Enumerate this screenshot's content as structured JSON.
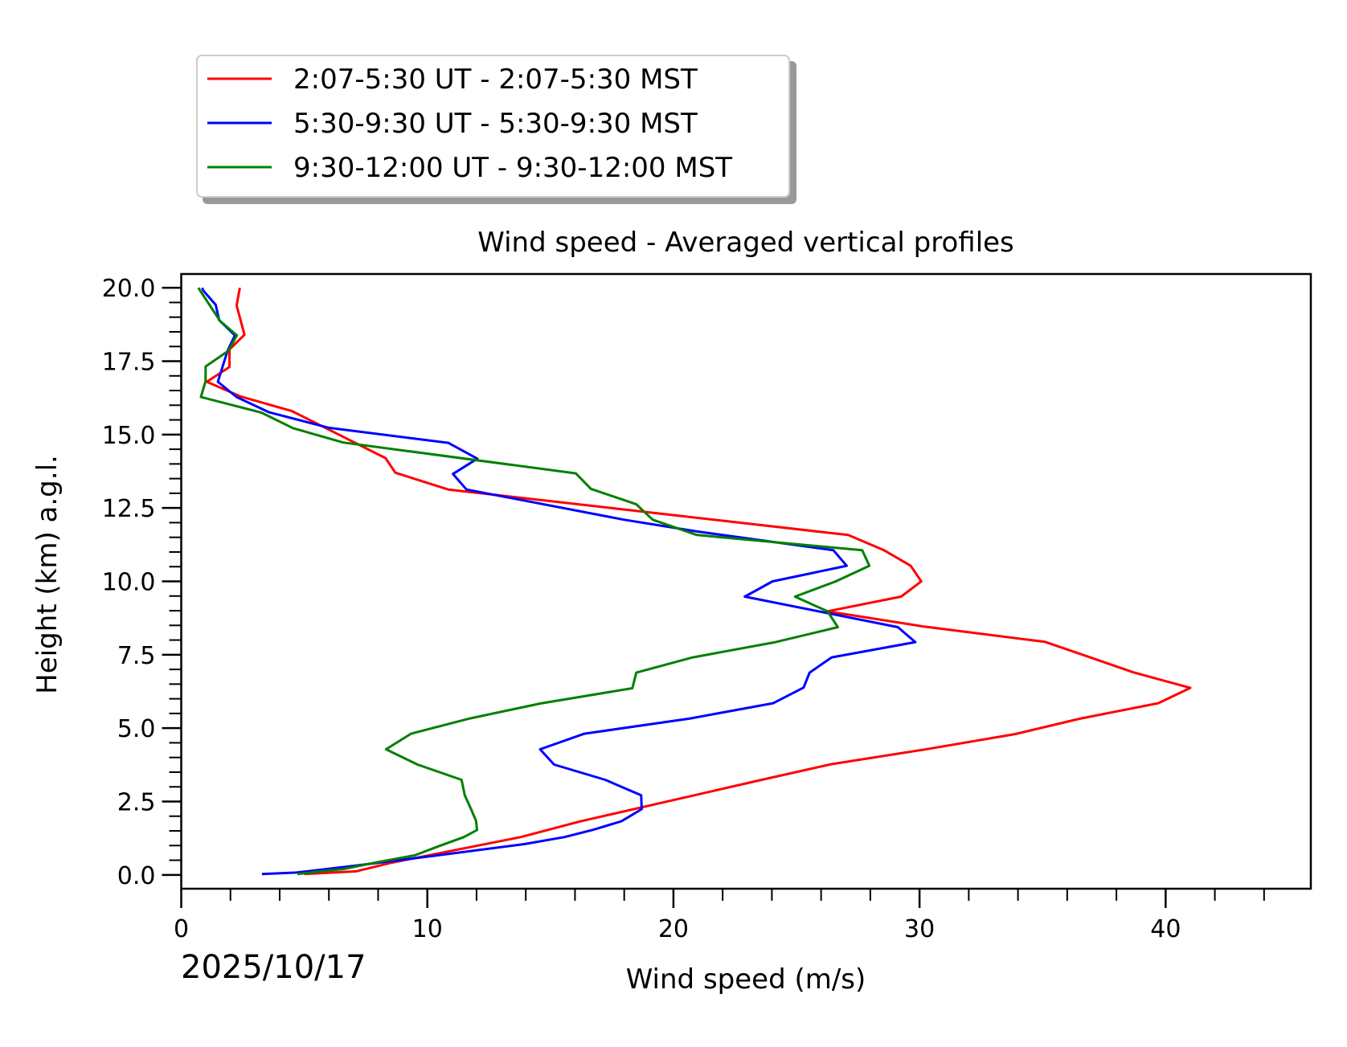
{
  "chart_data": {
    "type": "line",
    "title": "Wind speed - Averaged vertical profiles",
    "xlabel": "Wind speed (m/s)",
    "ylabel": "Height (km) a.g.l.",
    "date_label": "2025/10/17",
    "xlim": [
      0,
      45.9
    ],
    "ylim": [
      -0.47,
      20.47
    ],
    "x_ticks": [
      0,
      10,
      20,
      30,
      40
    ],
    "x_tick_labels": [
      "0",
      "10",
      "20",
      "30",
      "40"
    ],
    "x_minor_step": 2,
    "y_ticks": [
      0,
      2.5,
      5,
      7.5,
      10,
      12.5,
      15,
      17.5,
      20
    ],
    "y_tick_labels": [
      "0.0",
      "2.5",
      "5.0",
      "7.5",
      "10.0",
      "12.5",
      "15.0",
      "17.5",
      "20.0"
    ],
    "y_minor_step": 0.5,
    "grid": false,
    "legend_position": "above-left",
    "series": [
      {
        "name": "2:07-5:30 UT - 2:07-5:30 MST",
        "color": "#ff0000",
        "points": [
          [
            2.38,
            20.0
          ],
          [
            2.25,
            19.4
          ],
          [
            2.57,
            18.4
          ],
          [
            1.96,
            17.9
          ],
          [
            1.96,
            17.3
          ],
          [
            1.04,
            16.8
          ],
          [
            2.4,
            16.3
          ],
          [
            4.5,
            15.8
          ],
          [
            8.3,
            14.2
          ],
          [
            8.7,
            13.7
          ],
          [
            10.85,
            13.13
          ],
          [
            27.1,
            11.58
          ],
          [
            28.56,
            11.06
          ],
          [
            29.64,
            10.53
          ],
          [
            30.07,
            10.0
          ],
          [
            29.25,
            9.48
          ],
          [
            26.26,
            8.98
          ],
          [
            30.18,
            8.46
          ],
          [
            35.1,
            7.94
          ],
          [
            36.8,
            7.45
          ],
          [
            38.7,
            6.9
          ],
          [
            41.0,
            6.37
          ],
          [
            39.7,
            5.85
          ],
          [
            36.5,
            5.32
          ],
          [
            33.9,
            4.8
          ],
          [
            30.2,
            4.27
          ],
          [
            26.4,
            3.77
          ],
          [
            23.8,
            3.28
          ],
          [
            16.2,
            1.82
          ],
          [
            13.8,
            1.29
          ],
          [
            8.5,
            0.41
          ],
          [
            7.1,
            0.12
          ],
          [
            5.0,
            0.03
          ]
        ]
      },
      {
        "name": "5:30-9:30 UT - 5:30-9:30 MST",
        "color": "#0000ff",
        "points": [
          [
            0.85,
            20.0
          ],
          [
            0.9,
            19.9
          ],
          [
            1.4,
            19.42
          ],
          [
            1.54,
            18.9
          ],
          [
            2.18,
            18.38
          ],
          [
            1.88,
            17.85
          ],
          [
            1.49,
            16.8
          ],
          [
            2.25,
            16.28
          ],
          [
            3.57,
            15.76
          ],
          [
            6.0,
            15.23
          ],
          [
            10.85,
            14.72
          ],
          [
            12.03,
            14.18
          ],
          [
            11.04,
            13.66
          ],
          [
            11.59,
            13.13
          ],
          [
            18.0,
            12.1
          ],
          [
            20.95,
            11.7
          ],
          [
            26.5,
            11.06
          ],
          [
            27.04,
            10.53
          ],
          [
            24.03,
            10.0
          ],
          [
            22.9,
            9.48
          ],
          [
            29.12,
            8.44
          ],
          [
            29.83,
            7.93
          ],
          [
            26.43,
            7.41
          ],
          [
            25.53,
            6.89
          ],
          [
            25.29,
            6.38
          ],
          [
            24.06,
            5.85
          ],
          [
            20.69,
            5.33
          ],
          [
            16.38,
            4.81
          ],
          [
            14.58,
            4.28
          ],
          [
            15.15,
            3.76
          ],
          [
            17.23,
            3.24
          ],
          [
            18.69,
            2.71
          ],
          [
            18.71,
            2.24
          ],
          [
            17.89,
            1.83
          ],
          [
            16.75,
            1.54
          ],
          [
            15.58,
            1.29
          ],
          [
            13.94,
            1.05
          ],
          [
            10.44,
            0.67
          ],
          [
            7.13,
            0.32
          ],
          [
            4.68,
            0.08
          ],
          [
            3.28,
            0.03
          ]
        ]
      },
      {
        "name": "9:30-12:00 UT - 9:30-12:00 MST",
        "color": "#008000",
        "points": [
          [
            0.7,
            20.0
          ],
          [
            0.77,
            19.9
          ],
          [
            1.58,
            18.87
          ],
          [
            2.26,
            18.38
          ],
          [
            1.91,
            17.85
          ],
          [
            0.99,
            17.32
          ],
          [
            0.99,
            16.82
          ],
          [
            0.8,
            16.28
          ],
          [
            3.25,
            15.75
          ],
          [
            4.54,
            15.22
          ],
          [
            6.58,
            14.73
          ],
          [
            16.03,
            13.68
          ],
          [
            16.65,
            13.15
          ],
          [
            18.48,
            12.63
          ],
          [
            19.16,
            12.1
          ],
          [
            20.95,
            11.58
          ],
          [
            27.67,
            11.06
          ],
          [
            27.96,
            10.53
          ],
          [
            26.6,
            10.0
          ],
          [
            24.94,
            9.48
          ],
          [
            26.26,
            8.98
          ],
          [
            26.68,
            8.44
          ],
          [
            24.15,
            7.93
          ],
          [
            20.79,
            7.41
          ],
          [
            18.49,
            6.89
          ],
          [
            18.33,
            6.36
          ],
          [
            14.59,
            5.84
          ],
          [
            11.73,
            5.33
          ],
          [
            9.34,
            4.81
          ],
          [
            8.32,
            4.28
          ],
          [
            9.6,
            3.76
          ],
          [
            11.39,
            3.24
          ],
          [
            11.52,
            2.71
          ],
          [
            11.8,
            2.2
          ],
          [
            11.98,
            1.84
          ],
          [
            12.02,
            1.53
          ],
          [
            11.49,
            1.29
          ],
          [
            10.5,
            0.99
          ],
          [
            9.5,
            0.67
          ],
          [
            8.0,
            0.44
          ],
          [
            6.6,
            0.2
          ],
          [
            4.72,
            0.03
          ]
        ]
      }
    ]
  }
}
